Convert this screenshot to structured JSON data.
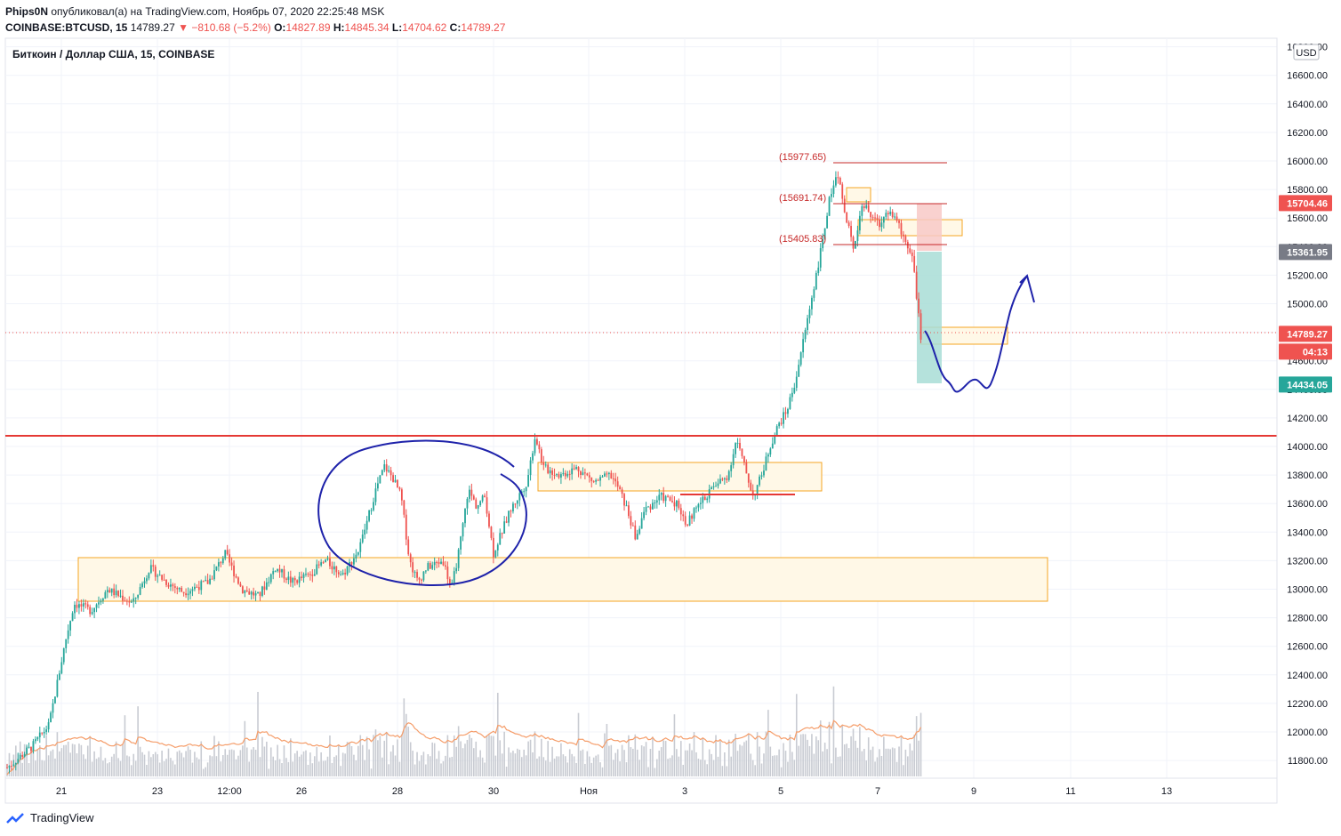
{
  "header": {
    "author": "Phips0N",
    "published_text": "опубликовал(а) на TradingView.com, Ноябрь 07, 2020 22:25:48 MSK",
    "symbol": "COINBASE:BTCUSD, 15",
    "last": "14789.27",
    "change_arrow": "▼",
    "change": "−810.68 (−5.2%)",
    "o_label": "O:",
    "o_value": "14827.89",
    "h_label": "H:",
    "h_value": "14845.34",
    "l_label": "L:",
    "l_value": "14704.62",
    "c_label": "C:",
    "c_value": "14789.27"
  },
  "chart_legend": "Биткоин / Доллар США, 15, COINBASE",
  "currency_button": "USD",
  "footer": {
    "brand": "TradingView"
  },
  "colors": {
    "up": "#26a69a",
    "down": "#ef5350",
    "grid": "#f0f3fa",
    "zone_fill": "#fff8e7",
    "zone_stroke": "#f5a623",
    "drawing_blue": "#1e22aa",
    "level_red": "#e53935",
    "volume": "#c8cbd2",
    "volume_ma": "#f59d6a"
  },
  "chart_data": {
    "type": "candlestick",
    "symbol": "BTCUSD",
    "y_ticks": [
      "11800.00",
      "12000.00",
      "12200.00",
      "12400.00",
      "12600.00",
      "12800.00",
      "13000.00",
      "13200.00",
      "13400.00",
      "13600.00",
      "13800.00",
      "14000.00",
      "14200.00",
      "14400.00",
      "14600.00",
      "14800.00",
      "15000.00",
      "15200.00",
      "15400.00",
      "15600.00",
      "15800.00",
      "16000.00",
      "16200.00",
      "16400.00",
      "16600.00",
      "16800.00"
    ],
    "x_ticks": [
      "21",
      "23",
      "12:00",
      "26",
      "28",
      "30",
      "Ноя",
      "3",
      "5",
      "7",
      "9",
      "11",
      "13"
    ],
    "ylim": [
      11700,
      16850
    ],
    "price_labels": [
      {
        "text": "15704.46",
        "value": 15704.46,
        "color": "#ef5350"
      },
      {
        "text": "15361.95",
        "value": 15361.95,
        "color": "#787b86"
      },
      {
        "text": "14789.27",
        "value": 14789.27,
        "color": "#ef5350"
      },
      {
        "text": "04:13",
        "value": 14789.27,
        "color": "#ef5350"
      },
      {
        "text": "14434.05",
        "value": 14434.05,
        "color": "#26a69a"
      }
    ],
    "fib_levels": [
      {
        "text": "(15977.65)",
        "value": 15977.65
      },
      {
        "text": "(15691.74)",
        "value": 15691.74
      },
      {
        "text": "(15405.83)",
        "value": 15405.83
      }
    ],
    "horizontal_level": 14070,
    "series_path": [
      [
        0,
        11750
      ],
      [
        3,
        11900
      ],
      [
        5,
        12050
      ],
      [
        7,
        12650
      ],
      [
        8,
        12900
      ],
      [
        10,
        12850
      ],
      [
        12,
        13000
      ],
      [
        15,
        12900
      ],
      [
        17,
        13150
      ],
      [
        19,
        13050
      ],
      [
        21,
        12980
      ],
      [
        24,
        13050
      ],
      [
        26,
        13250
      ],
      [
        28,
        13000
      ],
      [
        30,
        12950
      ],
      [
        32,
        13150
      ],
      [
        34,
        13050
      ],
      [
        36,
        13100
      ],
      [
        38,
        13200
      ],
      [
        40,
        13100
      ],
      [
        42,
        13280
      ],
      [
        44,
        13700
      ],
      [
        45,
        13860
      ],
      [
        46,
        13780
      ],
      [
        47,
        13650
      ],
      [
        48,
        13200
      ],
      [
        49,
        13050
      ],
      [
        50,
        13150
      ],
      [
        52,
        13200
      ],
      [
        53,
        13000
      ],
      [
        54,
        13300
      ],
      [
        55,
        13700
      ],
      [
        56,
        13580
      ],
      [
        57,
        13650
      ],
      [
        58,
        13250
      ],
      [
        59,
        13400
      ],
      [
        60,
        13550
      ],
      [
        62,
        13750
      ],
      [
        63,
        14080
      ],
      [
        64,
        13850
      ],
      [
        66,
        13800
      ],
      [
        68,
        13850
      ],
      [
        70,
        13750
      ],
      [
        72,
        13800
      ],
      [
        73,
        13700
      ],
      [
        74,
        13550
      ],
      [
        75,
        13350
      ],
      [
        76,
        13550
      ],
      [
        78,
        13650
      ],
      [
        80,
        13600
      ],
      [
        81,
        13450
      ],
      [
        82,
        13550
      ],
      [
        84,
        13700
      ],
      [
        86,
        13800
      ],
      [
        87,
        14050
      ],
      [
        88,
        13850
      ],
      [
        89,
        13650
      ],
      [
        90,
        13800
      ],
      [
        91,
        14000
      ],
      [
        92,
        14150
      ],
      [
        93,
        14250
      ],
      [
        94,
        14450
      ],
      [
        95,
        14750
      ],
      [
        96,
        15050
      ],
      [
        97,
        15350
      ],
      [
        98,
        15700
      ],
      [
        99,
        15950
      ],
      [
        100,
        15600
      ],
      [
        101,
        15400
      ],
      [
        102,
        15700
      ],
      [
        104,
        15550
      ],
      [
        105,
        15650
      ],
      [
        106,
        15600
      ],
      [
        107,
        15450
      ],
      [
        108,
        15350
      ],
      [
        109,
        14750
      ]
    ]
  }
}
